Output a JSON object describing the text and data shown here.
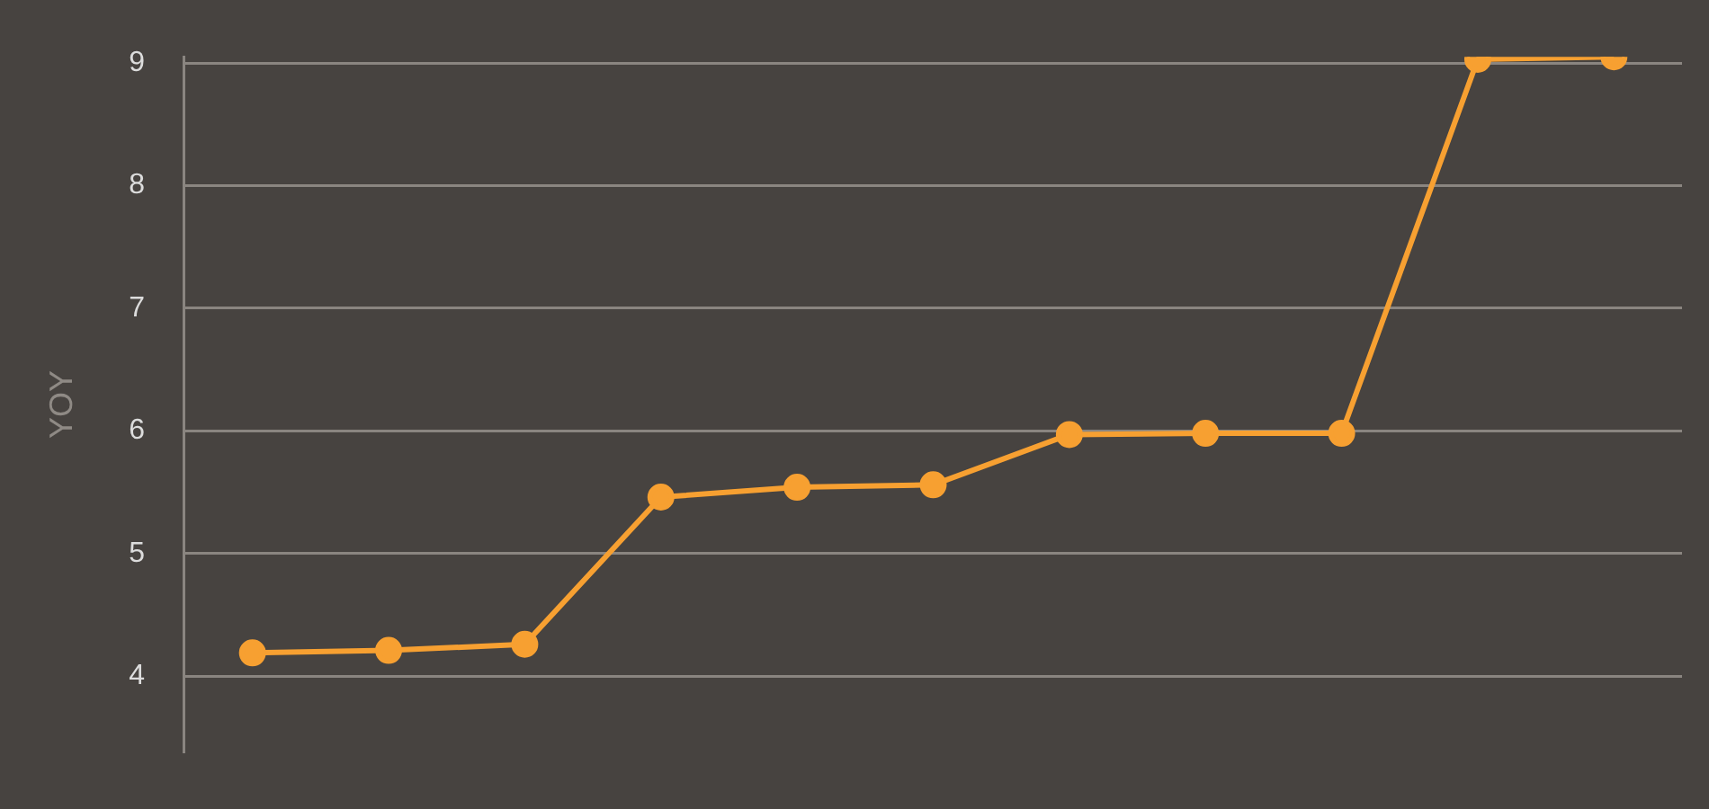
{
  "chart_data": {
    "type": "line",
    "ylabel": "YOY",
    "categories": [
      null,
      null,
      null,
      null,
      null,
      null,
      null,
      null,
      null,
      null,
      null
    ],
    "series": [
      {
        "color": "#f7a031",
        "values": [
          4.19,
          4.21,
          4.26,
          5.46,
          5.54,
          5.56,
          5.97,
          5.98,
          5.98,
          9.03,
          9.05
        ]
      }
    ],
    "ylim": [
      3.38,
      9.05
    ],
    "yticks": [
      4,
      5,
      6,
      7,
      8,
      9
    ],
    "grid": "y",
    "legend": false,
    "tick_labels": "y",
    "marker": "circle",
    "line_style": "solid"
  }
}
